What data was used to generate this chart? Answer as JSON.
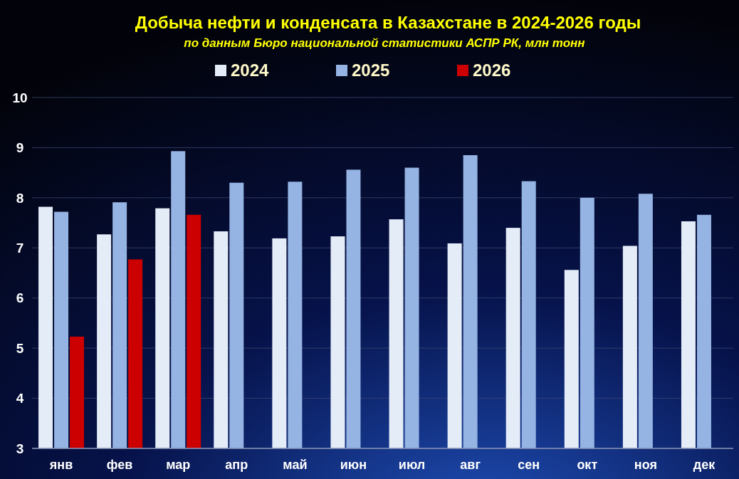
{
  "chart_data": {
    "type": "bar",
    "title": "Добыча нефти и конденсата в Казахстане в 2024-2026 годы",
    "subtitle": "по данным Бюро национальной статистики АСПР РК, млн тонн",
    "categories": [
      "янв",
      "фев",
      "мар",
      "апр",
      "май",
      "июн",
      "июл",
      "авг",
      "сен",
      "окт",
      "ноя",
      "дек"
    ],
    "series": [
      {
        "name": "2024",
        "color": "#e4ecf8",
        "values": [
          7.82,
          7.27,
          7.79,
          7.33,
          7.19,
          7.23,
          7.57,
          7.09,
          7.4,
          6.56,
          7.04,
          7.53
        ]
      },
      {
        "name": "2025",
        "color": "#95b3e3",
        "values": [
          7.72,
          7.91,
          8.93,
          8.3,
          8.32,
          8.56,
          8.6,
          8.85,
          8.33,
          8.0,
          8.08,
          7.66
        ]
      },
      {
        "name": "2026",
        "color": "#cc0000",
        "values": [
          5.23,
          6.77,
          7.66,
          null,
          null,
          null,
          null,
          null,
          null,
          null,
          null,
          null
        ]
      }
    ],
    "ylim": [
      3,
      10
    ],
    "yticks": [
      3,
      4,
      5,
      6,
      7,
      8,
      9,
      10
    ],
    "grid": "y",
    "legend": "top"
  }
}
